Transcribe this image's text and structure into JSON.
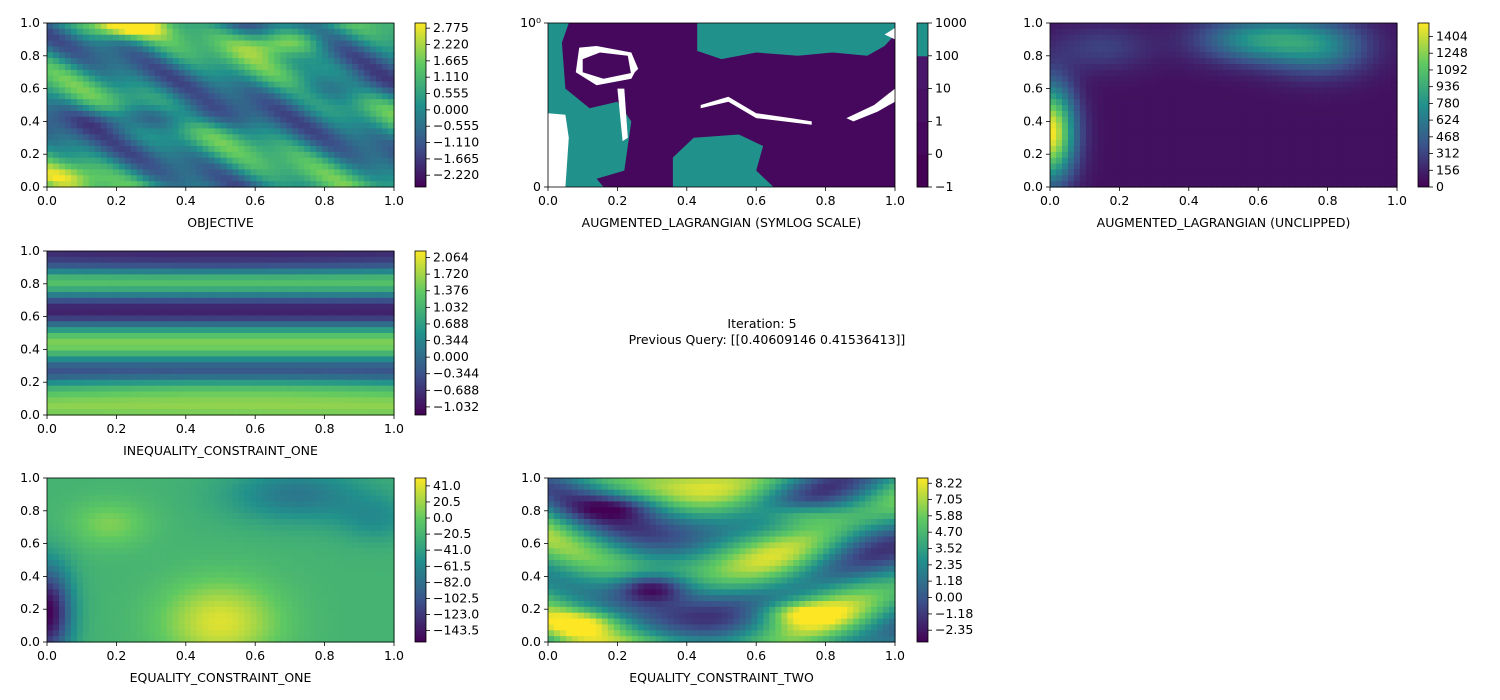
{
  "info_text": {
    "iteration": "Iteration: 5",
    "previous_query": "Previous Query: [[0.40609146 0.41536413]]"
  },
  "colormap": [
    "#440154",
    "#3b528b",
    "#21918c",
    "#5ec962",
    "#fde725"
  ],
  "chart_data": [
    {
      "type": "heatmap",
      "xlabel": "OBJECTIVE",
      "xlim": [
        0,
        1
      ],
      "ylim": [
        0,
        1
      ],
      "x_ticks": [
        "0.0",
        "0.2",
        "0.4",
        "0.6",
        "0.8",
        "1.0"
      ],
      "y_ticks": [
        "0.0",
        "0.2",
        "0.4",
        "0.6",
        "0.8",
        "1.0"
      ],
      "colorbar": {
        "min": -2.62,
        "max": 2.95,
        "ticks": [
          "2.775",
          "2.220",
          "1.665",
          "1.110",
          "0.555",
          "0.000",
          "−0.555",
          "−1.110",
          "−1.665",
          "−2.220"
        ],
        "tick_values": [
          2.775,
          2.22,
          1.665,
          1.11,
          0.555,
          0.0,
          -0.555,
          -1.11,
          -1.665,
          -2.22
        ]
      },
      "field": "objective"
    },
    {
      "type": "heatmap",
      "xlabel": "AUGMENTED_LAGRANGIAN (SYMLOG SCALE)",
      "xlim": [
        0,
        1
      ],
      "ylim": [
        0,
        1
      ],
      "x_ticks": [
        "0.0",
        "0.2",
        "0.4",
        "0.6",
        "0.8",
        "1.0"
      ],
      "y_ticks": [
        "0",
        "10⁰"
      ],
      "y_tick_values": [
        0,
        1
      ],
      "colorbar": {
        "discrete": true,
        "levels": [
          "−1",
          "0",
          "1",
          "10",
          "100",
          "1000"
        ],
        "level_colors": [
          "#440154",
          "#46085c",
          "#471063",
          "#481769",
          "#21918c"
        ]
      },
      "field": "augmented_symlog"
    },
    {
      "type": "heatmap",
      "xlabel": "AUGMENTED_LAGRANGIAN (UNCLIPPED)",
      "xlim": [
        0,
        1
      ],
      "ylim": [
        0,
        1
      ],
      "x_ticks": [
        "0.0",
        "0.2",
        "0.4",
        "0.6",
        "0.8",
        "1.0"
      ],
      "y_ticks": [
        "0.0",
        "0.2",
        "0.4",
        "0.6",
        "0.8",
        "1.0"
      ],
      "colorbar": {
        "min": 0,
        "max": 1530,
        "ticks": [
          "1404",
          "1248",
          "1092",
          "936",
          "780",
          "624",
          "468",
          "312",
          "156",
          "0"
        ],
        "tick_values": [
          1404,
          1248,
          1092,
          936,
          780,
          624,
          468,
          312,
          156,
          0
        ]
      },
      "field": "augmented_unclipped"
    },
    {
      "type": "heatmap",
      "xlabel": "INEQUALITY_CONSTRAINT_ONE",
      "xlim": [
        0,
        1
      ],
      "ylim": [
        0,
        1
      ],
      "x_ticks": [
        "0.0",
        "0.2",
        "0.4",
        "0.6",
        "0.8",
        "1.0"
      ],
      "y_ticks": [
        "0.0",
        "0.2",
        "0.4",
        "0.6",
        "0.8",
        "1.0"
      ],
      "colorbar": {
        "min": -1.2,
        "max": 2.2,
        "ticks": [
          "2.064",
          "1.720",
          "1.376",
          "1.032",
          "0.688",
          "0.344",
          "0.000",
          "−0.344",
          "−0.688",
          "−1.032"
        ],
        "tick_values": [
          2.064,
          1.72,
          1.376,
          1.032,
          0.688,
          0.344,
          0.0,
          -0.344,
          -0.688,
          -1.032
        ]
      },
      "field": "inequality_one"
    },
    {
      "type": "heatmap",
      "xlabel": "EQUALITY_CONSTRAINT_ONE",
      "xlim": [
        0,
        1
      ],
      "ylim": [
        0,
        1
      ],
      "x_ticks": [
        "0.0",
        "0.2",
        "0.4",
        "0.6",
        "0.8",
        "1.0"
      ],
      "y_ticks": [
        "0.0",
        "0.2",
        "0.4",
        "0.6",
        "0.8",
        "1.0"
      ],
      "colorbar": {
        "min": -158,
        "max": 51,
        "ticks": [
          "41.0",
          "20.5",
          "0.0",
          "−20.5",
          "−41.0",
          "−61.5",
          "−82.0",
          "−102.5",
          "−123.0",
          "−143.5"
        ],
        "tick_values": [
          41.0,
          20.5,
          0.0,
          -20.5,
          -41.0,
          -61.5,
          -82.0,
          -102.5,
          -123.0,
          -143.5
        ]
      },
      "field": "equality_one"
    },
    {
      "type": "heatmap",
      "xlabel": "EQUALITY_CONSTRAINT_TWO",
      "xlim": [
        0,
        1
      ],
      "ylim": [
        0,
        1
      ],
      "x_ticks": [
        "0.0",
        "0.2",
        "0.4",
        "0.6",
        "0.8",
        "1.0"
      ],
      "y_ticks": [
        "0.0",
        "0.2",
        "0.4",
        "0.6",
        "0.8",
        "1.0"
      ],
      "colorbar": {
        "min": -3.2,
        "max": 8.6,
        "ticks": [
          "8.22",
          "7.05",
          "5.88",
          "4.70",
          "3.52",
          "2.35",
          "1.18",
          "0.00",
          "−1.18",
          "−2.35"
        ],
        "tick_values": [
          8.22,
          7.05,
          5.88,
          4.7,
          3.52,
          2.35,
          1.18,
          0.0,
          -1.18,
          -2.35
        ]
      },
      "field": "equality_two"
    }
  ]
}
